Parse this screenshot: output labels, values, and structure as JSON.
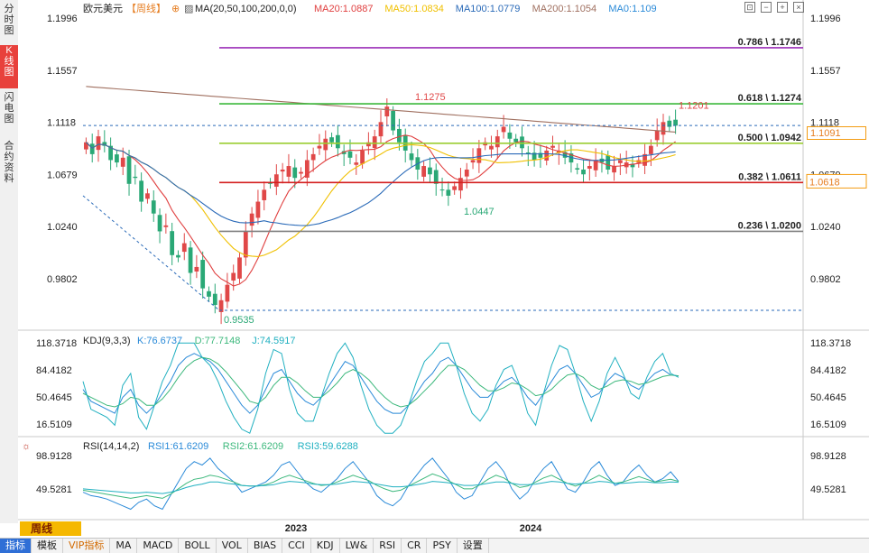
{
  "sidebar": {
    "tabs": [
      {
        "label": "分时图",
        "active": false
      },
      {
        "label": "K线图",
        "active": true
      },
      {
        "label": "闪电图",
        "active": false
      },
      {
        "label": "合约资料",
        "active": false
      }
    ]
  },
  "header": {
    "symbol": "欧元美元",
    "period": "【周线】",
    "ma_label": "MA(20,50,100,200,0,0)",
    "ma_values": [
      {
        "text": "MA20:1.0887",
        "color": "#e04040"
      },
      {
        "text": "MA50:1.0834",
        "color": "#f0c000"
      },
      {
        "text": "MA100:1.0779",
        "color": "#2a6ab8"
      },
      {
        "text": "MA200:1.1054",
        "color": "#a07060"
      },
      {
        "text": "MA0:1.109",
        "color": "#2a8ad8"
      }
    ]
  },
  "colors": {
    "up": "#e04848",
    "down": "#2aa876",
    "ma20": "#e04040",
    "ma50": "#f0c000",
    "ma100": "#2a6ab8",
    "ma200": "#a07060"
  },
  "chart_data": {
    "type": "candlestick",
    "price_axis": {
      "ticks": [
        "1.1996",
        "1.1557",
        "1.1118",
        "1.0679",
        "1.0240",
        "0.9802"
      ],
      "range": [
        0.9535,
        1.1996
      ]
    },
    "x_axis": {
      "ticks": [
        "2023",
        "2024"
      ]
    },
    "current_price": "1.1091",
    "ma20_badge": "1.0618",
    "fibonacci": [
      {
        "label": "0.786 \\ 1.1746",
        "value": 1.1746,
        "color": "#9b2fb8"
      },
      {
        "label": "0.618 \\ 1.1274",
        "value": 1.1274,
        "color": "#3cb83c"
      },
      {
        "label": "0.500 \\ 1.0942",
        "value": 1.0942,
        "color": "#9acd32"
      },
      {
        "label": "0.382 \\ 1.0611",
        "value": 1.0611,
        "color": "#d42020"
      },
      {
        "label": "0.236 \\ 1.0200",
        "value": 1.02,
        "color": "#808080"
      }
    ],
    "annotations": [
      {
        "text": "1.1275",
        "value": 1.1275,
        "color": "#e04848"
      },
      {
        "text": "1.1201",
        "value": 1.1201,
        "color": "#e04848"
      },
      {
        "text": "1.0447",
        "value": 1.0447,
        "color": "#2aa876"
      },
      {
        "text": "0.9535",
        "value": 0.9535,
        "color": "#2aa876"
      }
    ],
    "close_path": [
      1.095,
      1.085,
      1.1,
      1.092,
      1.08,
      1.078,
      1.082,
      1.06,
      1.065,
      1.045,
      1.052,
      1.035,
      1.02,
      1.025,
      1.0,
      0.998,
      1.01,
      0.985,
      0.99,
      0.972,
      0.965,
      0.958,
      0.962,
      0.975,
      0.985,
      0.998,
      1.02,
      1.035,
      1.045,
      1.055,
      1.06,
      1.068,
      1.072,
      1.075,
      1.065,
      1.07,
      1.08,
      1.085,
      1.092,
      1.098,
      1.095,
      1.09,
      1.085,
      1.082,
      1.078,
      1.088,
      1.095,
      1.1,
      1.112,
      1.125,
      1.105,
      1.095,
      1.088,
      1.08,
      1.072,
      1.075,
      1.068,
      1.06,
      1.055,
      1.05,
      1.058,
      1.065,
      1.072,
      1.08,
      1.09,
      1.095,
      1.092,
      1.1,
      1.108,
      1.098,
      1.095,
      1.09,
      1.085,
      1.08,
      1.082,
      1.088,
      1.092,
      1.088,
      1.082,
      1.078,
      1.072,
      1.068,
      1.075,
      1.08,
      1.078,
      1.072,
      1.075,
      1.08,
      1.078,
      1.074,
      1.08,
      1.085,
      1.092,
      1.105,
      1.112,
      1.108,
      1.109
    ],
    "kdj": {
      "label": "KDJ(9,3,3)",
      "values": [
        {
          "text": "K:76.6737",
          "color": "#2a8ad8"
        },
        {
          "text": "D:77.7148",
          "color": "#3cb87c"
        },
        {
          "text": "J:74.5917",
          "color": "#20b0c0"
        }
      ],
      "ticks": [
        "118.3718",
        "84.4182",
        "50.4645",
        "16.5109"
      ],
      "range": [
        16.5109,
        118.3718
      ],
      "series": [
        {
          "name": "K",
          "values": [
            60,
            45,
            40,
            35,
            30,
            50,
            60,
            40,
            30,
            40,
            55,
            70,
            90,
            100,
            105,
            100,
            95,
            85,
            70,
            55,
            40,
            30,
            40,
            60,
            80,
            85,
            70,
            55,
            45,
            40,
            50,
            65,
            80,
            95,
            90,
            75,
            60,
            45,
            35,
            30,
            30,
            40,
            55,
            70,
            80,
            95,
            100,
            90,
            75,
            60,
            50,
            50,
            60,
            70,
            75,
            65,
            50,
            40,
            55,
            70,
            85,
            90,
            80,
            65,
            50,
            55,
            70,
            80,
            75,
            65,
            60,
            70,
            80,
            85,
            78,
            77
          ]
        },
        {
          "name": "D",
          "values": [
            55,
            50,
            45,
            40,
            38,
            42,
            50,
            48,
            40,
            40,
            48,
            60,
            75,
            88,
            96,
            100,
            98,
            92,
            82,
            70,
            58,
            45,
            42,
            50,
            65,
            75,
            75,
            68,
            58,
            50,
            50,
            58,
            68,
            80,
            85,
            80,
            72,
            60,
            50,
            42,
            38,
            40,
            48,
            58,
            68,
            80,
            90,
            90,
            85,
            75,
            65,
            58,
            58,
            62,
            68,
            66,
            60,
            52,
            54,
            60,
            70,
            78,
            80,
            75,
            65,
            60,
            64,
            70,
            72,
            70,
            66,
            68,
            72,
            76,
            78,
            77
          ]
        },
        {
          "name": "J",
          "values": [
            70,
            35,
            30,
            25,
            15,
            65,
            80,
            25,
            10,
            40,
            70,
            90,
            118,
            118,
            118,
            100,
            90,
            70,
            45,
            25,
            10,
            5,
            35,
            80,
            110,
            105,
            60,
            30,
            20,
            20,
            50,
            80,
            105,
            118,
            100,
            65,
            35,
            15,
            5,
            5,
            15,
            40,
            70,
            95,
            105,
            118,
            118,
            90,
            55,
            30,
            20,
            35,
            65,
            85,
            90,
            65,
            30,
            15,
            55,
            90,
            115,
            110,
            80,
            45,
            20,
            45,
            80,
            100,
            80,
            55,
            48,
            75,
            95,
            105,
            80,
            75
          ]
        }
      ]
    },
    "rsi": {
      "label": "RSI(14,14,2)",
      "values": [
        {
          "text": "RSI1:61.6209",
          "color": "#2a8ad8"
        },
        {
          "text": "RSI2:61.6209",
          "color": "#3cb87c"
        },
        {
          "text": "RSI3:59.6288",
          "color": "#20b0c0"
        }
      ],
      "ticks": [
        "98.9128",
        "49.5281"
      ],
      "range": [
        10,
        98.9128
      ],
      "series": [
        {
          "name": "RSI1",
          "values": [
            45,
            40,
            38,
            35,
            30,
            25,
            20,
            30,
            35,
            25,
            20,
            40,
            60,
            80,
            90,
            85,
            95,
            80,
            70,
            60,
            45,
            50,
            55,
            60,
            70,
            85,
            90,
            75,
            60,
            50,
            45,
            55,
            65,
            80,
            90,
            75,
            60,
            40,
            30,
            25,
            35,
            55,
            70,
            85,
            95,
            80,
            65,
            45,
            35,
            40,
            60,
            80,
            90,
            75,
            50,
            35,
            45,
            65,
            80,
            90,
            70,
            50,
            45,
            60,
            80,
            90,
            70,
            55,
            60,
            75,
            85,
            70,
            60,
            65,
            75,
            61
          ]
        },
        {
          "name": "RSI2",
          "values": [
            48,
            46,
            44,
            42,
            40,
            38,
            36,
            38,
            40,
            38,
            36,
            42,
            50,
            58,
            64,
            66,
            70,
            68,
            64,
            60,
            55,
            54,
            54,
            56,
            60,
            66,
            70,
            66,
            62,
            58,
            55,
            56,
            60,
            65,
            70,
            66,
            62,
            55,
            50,
            46,
            48,
            54,
            60,
            66,
            72,
            68,
            62,
            56,
            50,
            50,
            56,
            64,
            70,
            66,
            58,
            52,
            54,
            60,
            66,
            70,
            64,
            58,
            54,
            58,
            64,
            70,
            64,
            58,
            60,
            64,
            68,
            64,
            60,
            62,
            64,
            61
          ]
        },
        {
          "name": "RSI3",
          "values": [
            50,
            49,
            48,
            47,
            46,
            45,
            44,
            44,
            45,
            44,
            43,
            45,
            48,
            52,
            55,
            57,
            60,
            60,
            58,
            57,
            55,
            54,
            54,
            55,
            56,
            59,
            61,
            60,
            59,
            57,
            56,
            56,
            57,
            59,
            61,
            60,
            59,
            57,
            55,
            53,
            53,
            54,
            56,
            58,
            61,
            60,
            59,
            57,
            55,
            55,
            56,
            58,
            60,
            60,
            58,
            56,
            56,
            57,
            59,
            61,
            60,
            58,
            57,
            58,
            59,
            61,
            60,
            58,
            58,
            59,
            60,
            60,
            59,
            59,
            60,
            59.6
          ]
        }
      ]
    }
  },
  "controls": {
    "icons": [
      "fit-icon",
      "minus-icon",
      "plus-icon",
      "close-icon"
    ]
  },
  "bottom": {
    "period_button": "周线",
    "tabs": [
      "指标",
      "模板",
      "VIP指标",
      "MA",
      "MACD",
      "BOLL",
      "VOL",
      "BIAS",
      "CCI",
      "KDJ",
      "LW&",
      "RSI",
      "CR",
      "PSY",
      "设置"
    ]
  }
}
